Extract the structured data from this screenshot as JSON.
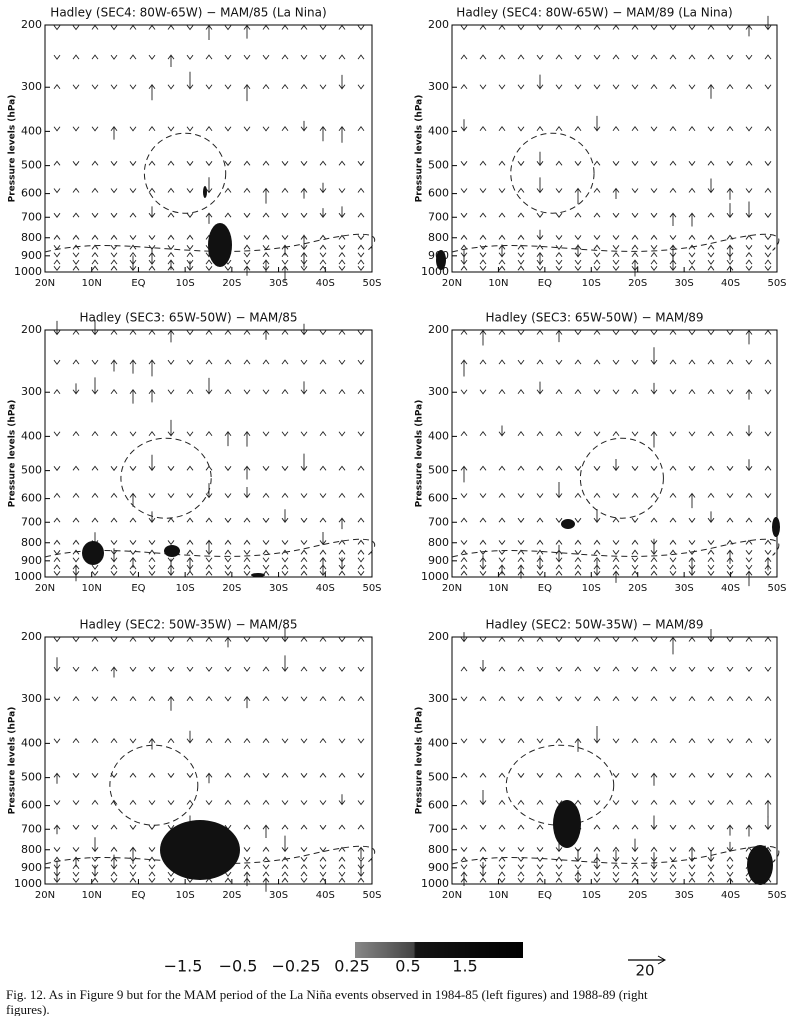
{
  "panels": [
    {
      "title": "Hadley (SEC4: 80W-65W) − MAM/85 (La Nina)",
      "y_label": "Pressure levels (hPa)",
      "yscale": "log",
      "ylim": [
        1000,
        200
      ],
      "yticks": [
        200,
        300,
        400,
        500,
        600,
        700,
        800,
        900,
        1000
      ],
      "xticks": [
        "20N",
        "10N",
        "EQ",
        "10S",
        "20S",
        "30S",
        "40S",
        "50S"
      ]
    },
    {
      "title": "Hadley (SEC4: 80W-65W) − MAM/89 (La Nina)",
      "y_label": "Pressure levels (hPa)",
      "yscale": "log",
      "ylim": [
        1000,
        200
      ],
      "yticks": [
        200,
        300,
        400,
        500,
        600,
        700,
        800,
        900,
        1000
      ],
      "xticks": [
        "20N",
        "10N",
        "EQ",
        "10S",
        "20S",
        "30S",
        "40S",
        "50S"
      ]
    },
    {
      "title": "Hadley (SEC3: 65W-50W) − MAM/85",
      "y_label": "Pressure levels (hPa)",
      "yscale": "log",
      "ylim": [
        1000,
        200
      ],
      "yticks": [
        200,
        300,
        400,
        500,
        600,
        700,
        800,
        900,
        1000
      ],
      "xticks": [
        "20N",
        "10N",
        "EQ",
        "10S",
        "20S",
        "30S",
        "40S",
        "50S"
      ]
    },
    {
      "title": "Hadley (SEC3: 65W-50W) − MAM/89",
      "y_label": "Pressure levels (hPa)",
      "yscale": "log",
      "ylim": [
        1000,
        200
      ],
      "yticks": [
        200,
        300,
        400,
        500,
        600,
        700,
        800,
        900,
        1000
      ],
      "xticks": [
        "20N",
        "10N",
        "EQ",
        "10S",
        "20S",
        "30S",
        "40S",
        "50S"
      ]
    },
    {
      "title": "Hadley (SEC2: 50W-35W) − MAM/85",
      "y_label": "Pressure levels (hPa)",
      "yscale": "log",
      "ylim": [
        1000,
        200
      ],
      "yticks": [
        200,
        300,
        400,
        500,
        600,
        700,
        800,
        900,
        1000
      ],
      "xticks": [
        "20N",
        "10N",
        "EQ",
        "10S",
        "20S",
        "30S",
        "40S",
        "50S"
      ]
    },
    {
      "title": "Hadley (SEC2: 50W-35W) − MAM/89",
      "y_label": "Pressure levels (hPa)",
      "yscale": "log",
      "ylim": [
        1000,
        200
      ],
      "yticks": [
        200,
        300,
        400,
        500,
        600,
        700,
        800,
        900,
        1000
      ],
      "xticks": [
        "20N",
        "10N",
        "EQ",
        "10S",
        "20S",
        "30S",
        "40S",
        "50S"
      ]
    }
  ],
  "colorbar": {
    "labels": [
      "−1.5",
      "−0.5",
      "−0.25",
      "0.25",
      "0.5",
      "1.5"
    ]
  },
  "reference_vector": {
    "label": "20"
  },
  "caption": "Fig. 12. As in Figure 9 but for the MAM period of the La Niña events observed in 1984-85 (left figures) and 1988-89 (right figures)."
}
